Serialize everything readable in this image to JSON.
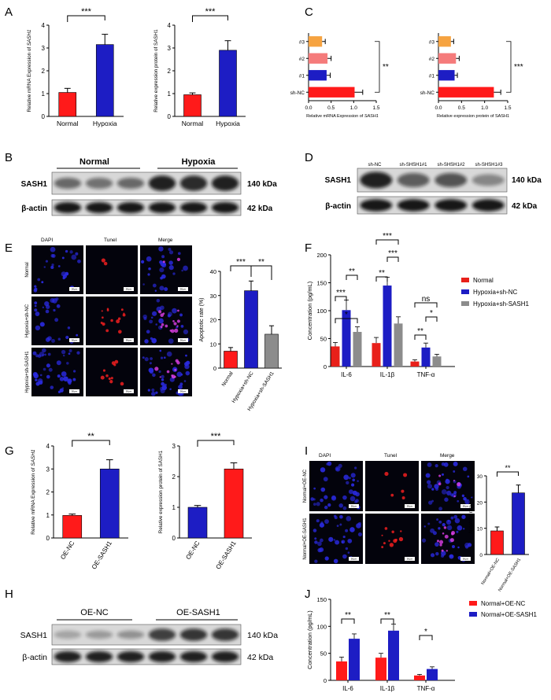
{
  "colors": {
    "red": "#ff1a1a",
    "blue": "#1d1dc4",
    "gray": "#8c8c8c",
    "orange": "#f6a340",
    "pink": "#f57b7b",
    "darkred": "#e8201a"
  },
  "panels": {
    "A": {
      "letter": "A"
    },
    "B": {
      "letter": "B"
    },
    "C": {
      "letter": "C"
    },
    "D": {
      "letter": "D"
    },
    "E": {
      "letter": "E"
    },
    "F": {
      "letter": "F"
    },
    "G": {
      "letter": "G"
    },
    "H": {
      "letter": "H"
    },
    "I": {
      "letter": "I"
    },
    "J": {
      "letter": "J"
    }
  },
  "western_B": {
    "group_labels": [
      "Normal",
      "Hypoxia"
    ],
    "row_labels": [
      "SASH1",
      "β-actin"
    ],
    "sizes": [
      "140 kDa",
      "42 kDa"
    ]
  },
  "western_D": {
    "lane_labels": [
      "sh-NC",
      "sh-SHSH1#1",
      "sh-SHSH1#2",
      "sh-SHSH1#3"
    ],
    "row_labels": [
      "SASH1",
      "β-actin"
    ],
    "sizes": [
      "140 kDa",
      "42 kDa"
    ]
  },
  "western_H": {
    "group_labels": [
      "OE-NC",
      "OE-SASH1"
    ],
    "row_labels": [
      "SASH1",
      "β-actin"
    ],
    "sizes": [
      "140 kDa",
      "42 kDa"
    ]
  },
  "micro_E": {
    "col_labels": [
      "DAPI",
      "Tunel",
      "Merge"
    ],
    "row_labels": [
      "Normal",
      "Hypoxia+sh-NC",
      "Hypoxia+sh-SASH1"
    ],
    "scale": "50μm"
  },
  "micro_I": {
    "col_labels": [
      "DAPI",
      "Tunel",
      "Merge"
    ],
    "row_labels": [
      "Normal+OE-NC",
      "Normal+OE-SASH1"
    ],
    "scale": "50μm"
  },
  "chart_data": [
    {
      "id": "A1",
      "type": "bar",
      "categories": [
        "Normal",
        "Hypoxia"
      ],
      "values": [
        1.05,
        3.15
      ],
      "errors": [
        0.18,
        0.45
      ],
      "ylabel_pre": "Relative mRNA Expression of ",
      "ylabel_gene": "SASH1",
      "ylim": [
        0,
        4
      ],
      "yticks": [
        "0",
        "1",
        "2",
        "3",
        "4"
      ],
      "significance": [
        "***"
      ]
    },
    {
      "id": "A2",
      "type": "bar",
      "categories": [
        "Normal",
        "Hypoxia"
      ],
      "values": [
        0.95,
        2.9
      ],
      "errors": [
        0.08,
        0.42
      ],
      "ylabel": "Relative expression protein of SASH1",
      "ylim": [
        0,
        4
      ],
      "yticks": [
        "0",
        "1",
        "2",
        "3",
        "4"
      ],
      "significance": [
        "***"
      ]
    },
    {
      "id": "C1",
      "type": "bar",
      "orientation": "horizontal",
      "categories": [
        "#3",
        "#2",
        "#1",
        "sh-NC"
      ],
      "values": [
        0.3,
        0.42,
        0.4,
        1.02
      ],
      "errors": [
        0.07,
        0.08,
        0.08,
        0.18
      ],
      "xlabel_pre": "Relative mRNA Expression of ",
      "xlabel_gene": "SASH1",
      "xlim": [
        0,
        1.5
      ],
      "xticks": [
        "0.0",
        "0.5",
        "1.0",
        "1.5"
      ],
      "significance": [
        "**"
      ]
    },
    {
      "id": "C2",
      "type": "bar",
      "orientation": "horizontal",
      "categories": [
        "#3",
        "#2",
        "#1",
        "sh-NC"
      ],
      "values": [
        0.27,
        0.38,
        0.35,
        1.2
      ],
      "errors": [
        0.06,
        0.07,
        0.06,
        0.15
      ],
      "xlabel": "Relative expression protein of SASH1",
      "xlim": [
        0,
        1.5
      ],
      "xticks": [
        "0.0",
        "0.5",
        "1.0",
        "1.5"
      ],
      "significance": [
        "***"
      ]
    },
    {
      "id": "E",
      "type": "bar",
      "categories": [
        "Normal",
        "Hypoxia+sh-NC",
        "Hypoxia+sh-SASH1"
      ],
      "values": [
        7,
        32,
        14
      ],
      "errors": [
        1.5,
        4,
        3.5
      ],
      "ylabel": "Apoptotic rate (%)",
      "ylim": [
        0,
        40
      ],
      "yticks": [
        "0",
        "10",
        "20",
        "30",
        "40"
      ],
      "significance": [
        "***",
        "**"
      ]
    },
    {
      "id": "F",
      "type": "bar",
      "categories": [
        "IL-6",
        "IL-1β",
        "TNF-α"
      ],
      "series": [
        {
          "name": "Normal",
          "values": [
            36,
            42,
            9
          ],
          "errors": [
            7,
            10,
            3
          ]
        },
        {
          "name": "Hypoxia+sh-NC",
          "values": [
            101,
            145,
            34
          ],
          "errors": [
            18,
            15,
            8
          ]
        },
        {
          "name": "Hypoxia+sh-SASH1",
          "values": [
            62,
            77,
            18
          ],
          "errors": [
            9,
            12,
            4
          ]
        }
      ],
      "ylabel": "Concentration (pg/mL)",
      "ylim": [
        0,
        200
      ],
      "yticks": [
        "0",
        "50",
        "100",
        "150",
        "200"
      ],
      "significance": [
        "*",
        "***",
        "**",
        "**",
        "***",
        "***",
        "ns",
        "**",
        "*"
      ],
      "legend": "top-right"
    },
    {
      "id": "G1",
      "type": "bar",
      "categories": [
        "OE-NC",
        "OE-SASH1"
      ],
      "values": [
        0.98,
        3.0
      ],
      "errors": [
        0.06,
        0.4
      ],
      "ylabel_pre": "Relative mRNA Expression of ",
      "ylabel_gene": "SASH1",
      "ylim": [
        0,
        4
      ],
      "yticks": [
        "0",
        "1",
        "2",
        "3",
        "4"
      ],
      "significance": [
        "**"
      ]
    },
    {
      "id": "G2",
      "type": "bar",
      "categories": [
        "OE-NC",
        "OE-SASH1"
      ],
      "values": [
        1.0,
        2.25
      ],
      "errors": [
        0.06,
        0.2
      ],
      "ylabel": "Relative expression protein of SASH1",
      "ylim": [
        0,
        3
      ],
      "yticks": [
        "0",
        "1",
        "2",
        "3"
      ],
      "significance": [
        "***"
      ]
    },
    {
      "id": "I",
      "type": "bar",
      "categories": [
        "Normal+OE-NC",
        "Normal+OE-SASH1"
      ],
      "values": [
        9,
        23.5
      ],
      "errors": [
        1.5,
        3
      ],
      "ylabel": "Apoptotic rate (%)",
      "ylim": [
        0,
        30
      ],
      "yticks": [
        "0",
        "10",
        "20",
        "30"
      ],
      "significance": [
        "**"
      ]
    },
    {
      "id": "J",
      "type": "bar",
      "categories": [
        "IL-6",
        "IL-1β",
        "TNF-α"
      ],
      "series": [
        {
          "name": "Normal+OE-NC",
          "values": [
            35,
            42,
            9
          ],
          "errors": [
            8,
            8,
            2
          ]
        },
        {
          "name": "Normal+OE-SASH1",
          "values": [
            77,
            92,
            21
          ],
          "errors": [
            9,
            12,
            4
          ]
        }
      ],
      "ylabel": "Concentration (pg/mL)",
      "ylim": [
        0,
        150
      ],
      "yticks": [
        "0",
        "50",
        "100",
        "150"
      ],
      "significance": [
        "**",
        "**",
        "*"
      ],
      "legend": "top-right"
    }
  ]
}
